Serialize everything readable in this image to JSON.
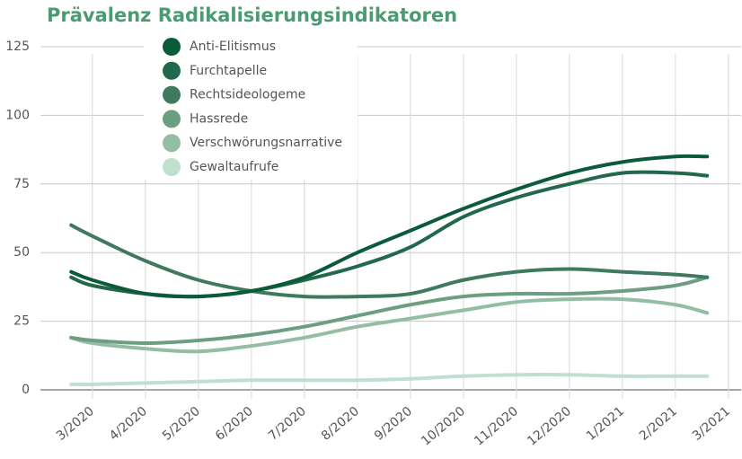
{
  "chart_data": {
    "type": "line",
    "title": "Prävalenz Radikalisierungsindikatoren",
    "x": [
      -0.4,
      0,
      1,
      2,
      3,
      4,
      5,
      6,
      7,
      8,
      9,
      10,
      11,
      11.6
    ],
    "series": [
      {
        "name": "Anti-Elitismus",
        "color": "#0b5a3a",
        "values": [
          43,
          40,
          35,
          34,
          36,
          41,
          50,
          58,
          66,
          73,
          79,
          83,
          85,
          85
        ]
      },
      {
        "name": "Furchtapelle",
        "color": "#22684a",
        "values": [
          41,
          38,
          35,
          34,
          36,
          40,
          45,
          52,
          63,
          70,
          75,
          79,
          79,
          78
        ]
      },
      {
        "name": "Rechtsideologeme",
        "color": "#3f7a5e",
        "values": [
          60,
          56,
          47,
          40,
          36,
          34,
          34,
          35,
          40,
          43,
          44,
          43,
          42,
          41
        ]
      },
      {
        "name": "Hassrede",
        "color": "#6c9e82",
        "values": [
          19,
          18,
          17,
          18,
          20,
          23,
          27,
          31,
          34,
          35,
          35,
          36,
          38,
          41
        ]
      },
      {
        "name": "Verschwörungsnarrative",
        "color": "#95bda5",
        "values": [
          19,
          17,
          15,
          14,
          16,
          19,
          23,
          26,
          29,
          32,
          33,
          33,
          31,
          28
        ]
      },
      {
        "name": "Gewaltaufrufe",
        "color": "#bfe0cf",
        "values": [
          2,
          2,
          2.5,
          3,
          3.5,
          3.5,
          3.5,
          4,
          5,
          5.5,
          5.5,
          5,
          5,
          5
        ]
      }
    ],
    "xlim": [
      -0.98,
      12.24
    ],
    "xticks": [
      {
        "value": 0,
        "label": "3/2020"
      },
      {
        "value": 1,
        "label": "4/2020"
      },
      {
        "value": 2,
        "label": "5/2020"
      },
      {
        "value": 3,
        "label": "6/2020"
      },
      {
        "value": 4,
        "label": "7/2020"
      },
      {
        "value": 5,
        "label": "8/2020"
      },
      {
        "value": 6,
        "label": "9/2020"
      },
      {
        "value": 7,
        "label": "10/2020"
      },
      {
        "value": 8,
        "label": "11/2020"
      },
      {
        "value": 9,
        "label": "12/2020"
      },
      {
        "value": 10,
        "label": "1/2021"
      },
      {
        "value": 11,
        "label": "2/2021"
      },
      {
        "value": 12,
        "label": "3/2021"
      }
    ],
    "ylim": [
      0,
      125
    ],
    "yticks": [
      0,
      25,
      50,
      75,
      100,
      125
    ],
    "grid": true
  }
}
